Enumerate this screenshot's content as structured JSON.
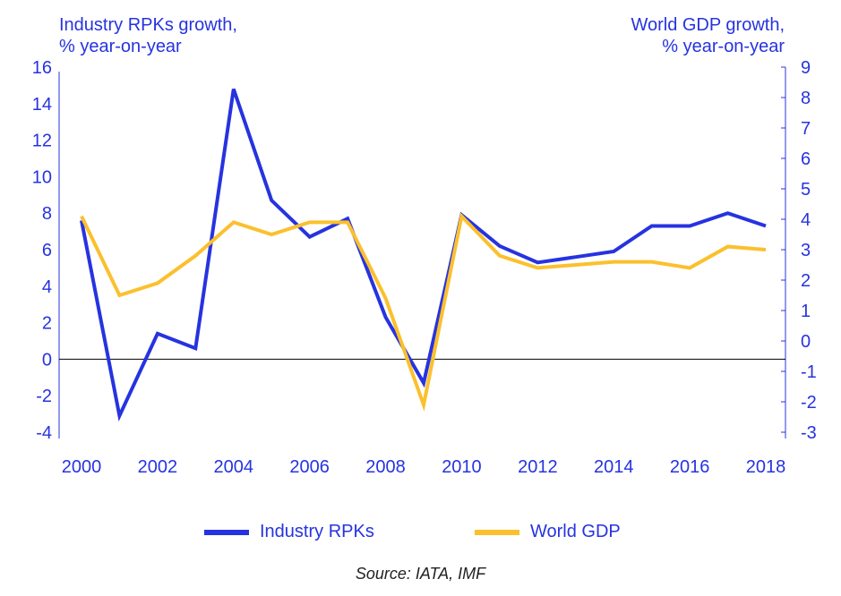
{
  "chart_data": {
    "type": "line",
    "x": [
      2000,
      2001,
      2002,
      2003,
      2004,
      2005,
      2006,
      2007,
      2008,
      2009,
      2010,
      2011,
      2012,
      2013,
      2014,
      2015,
      2016,
      2017,
      2018
    ],
    "x_ticks": [
      "2000",
      "2002",
      "2004",
      "2006",
      "2008",
      "2010",
      "2012",
      "2014",
      "2016",
      "2018"
    ],
    "ylabel_left": "Industry RPKs growth,\n% year-on-year",
    "ylabel_right": "World GDP growth,\n% year-on-year",
    "ylim_left": [
      -4,
      16
    ],
    "yticks_left": [
      "-4",
      "-2",
      "0",
      "2",
      "4",
      "6",
      "8",
      "10",
      "12",
      "14",
      "16"
    ],
    "ylim_right": [
      -3,
      9
    ],
    "yticks_right": [
      "-3",
      "-2",
      "-1",
      "0",
      "1",
      "2",
      "3",
      "4",
      "5",
      "6",
      "7",
      "8",
      "9"
    ],
    "series": [
      {
        "name": "Industry RPKs",
        "axis": "left",
        "color": "#2633e0",
        "values": [
          7.6,
          -3.1,
          1.4,
          0.6,
          14.8,
          8.7,
          6.7,
          7.7,
          2.3,
          -1.3,
          7.9,
          6.2,
          5.3,
          5.6,
          5.9,
          7.3,
          7.3,
          8.0,
          7.3
        ]
      },
      {
        "name": "World GDP",
        "axis": "right",
        "color": "#fbc02d",
        "values": [
          4.1,
          1.5,
          1.9,
          2.8,
          3.9,
          3.5,
          3.9,
          3.9,
          1.4,
          -2.1,
          4.1,
          2.8,
          2.4,
          2.5,
          2.6,
          2.6,
          2.4,
          3.1,
          3.0
        ]
      }
    ],
    "zero_line": true,
    "legend_position": "bottom"
  },
  "legend": {
    "items": [
      {
        "label": "Industry RPKs",
        "color": "#2633e0"
      },
      {
        "label": "World GDP",
        "color": "#fbc02d"
      }
    ]
  },
  "source": "Source: IATA, IMF"
}
